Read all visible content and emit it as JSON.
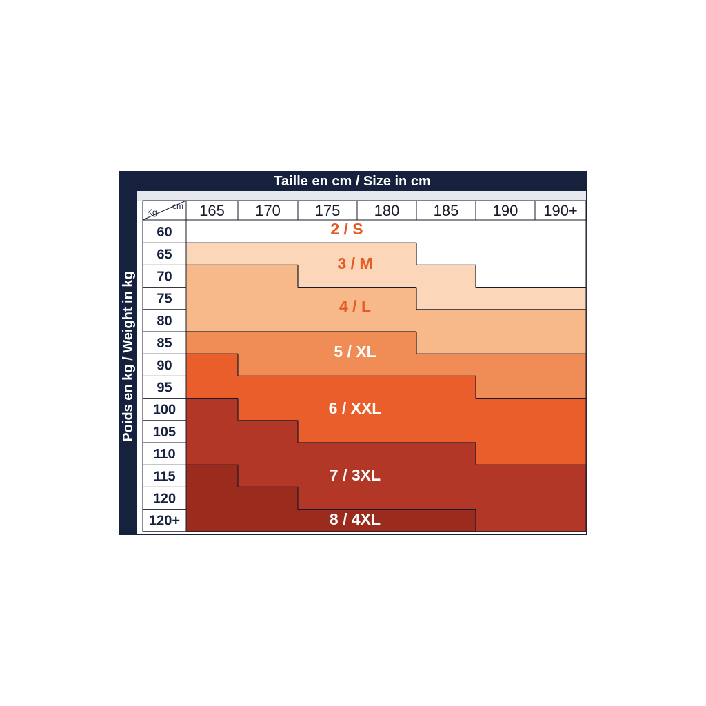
{
  "chart_data": {
    "type": "table",
    "title": "Taille en cm / Size in cm",
    "ylabel": "Poids en kg / Weight in kg",
    "corner": {
      "row_unit": "Kg",
      "col_unit": "cm"
    },
    "columns": [
      "165",
      "170",
      "175",
      "180",
      "185",
      "190",
      "190+"
    ],
    "rows": [
      "60",
      "65",
      "70",
      "75",
      "80",
      "85",
      "90",
      "95",
      "100",
      "105",
      "110",
      "115",
      "120",
      "120+"
    ],
    "size_labels": [
      "2 / S",
      "3 / M",
      "4 / L",
      "5 / XL",
      "6 / XXL",
      "7 / 3XL",
      "8 / 4XL"
    ],
    "size_colors": [
      "#ffffff",
      "#fcd6b8",
      "#f8b98a",
      "#f08c55",
      "#ea5e2c",
      "#b23726",
      "#9a2b1d"
    ],
    "label_colors": [
      "#e55b24",
      "#e55b24",
      "#e55b24",
      "#ffffff",
      "#ffffff",
      "#ffffff",
      "#ffffff"
    ],
    "cells": [
      [
        0,
        0,
        0,
        0,
        0,
        0,
        0
      ],
      [
        1,
        1,
        1,
        1,
        0,
        0,
        0
      ],
      [
        2,
        2,
        1,
        1,
        1,
        0,
        0
      ],
      [
        2,
        2,
        2,
        2,
        1,
        1,
        1
      ],
      [
        2,
        2,
        2,
        2,
        2,
        2,
        2
      ],
      [
        3,
        3,
        3,
        3,
        2,
        2,
        2
      ],
      [
        4,
        3,
        3,
        3,
        3,
        3,
        3
      ],
      [
        4,
        4,
        4,
        4,
        4,
        3,
        3
      ],
      [
        5,
        4,
        4,
        4,
        4,
        4,
        4
      ],
      [
        5,
        5,
        4,
        4,
        4,
        4,
        4
      ],
      [
        5,
        5,
        5,
        5,
        5,
        4,
        4
      ],
      [
        6,
        5,
        5,
        5,
        5,
        5,
        5
      ],
      [
        6,
        6,
        5,
        5,
        5,
        5,
        5
      ],
      [
        6,
        6,
        6,
        6,
        6,
        5,
        5
      ]
    ],
    "colors": {
      "frame": "#16213e",
      "header_background": "#e6e8f0",
      "grid_line": "#1a1a2a",
      "panel_background": "#ffffff"
    }
  }
}
